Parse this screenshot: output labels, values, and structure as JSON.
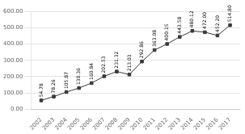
{
  "chart_data": {
    "type": "line",
    "x": [
      2002,
      2003,
      2004,
      2005,
      2006,
      2007,
      2008,
      2009,
      2010,
      2011,
      2012,
      2013,
      2014,
      2015,
      2016,
      2017
    ],
    "values": [
      54.78,
      78.26,
      105.87,
      130.36,
      160.84,
      202.53,
      231.32,
      213.03,
      292.86,
      363.08,
      400.15,
      443.58,
      480.12,
      472.0,
      452.2,
      514.8
    ],
    "value_labels": [
      "54.78",
      "78.26",
      "105.87",
      "130.36",
      "160.84",
      "202.53",
      "231.32",
      "213.03",
      "292.86",
      "363.08",
      "400.15",
      "443.58",
      "480.12",
      "472.00",
      "452.20",
      "514.80"
    ],
    "color": "#3a3a3a",
    "marker": "square",
    "xlim": [
      2001.2,
      2017.8
    ],
    "xticks": [
      2002,
      2003,
      2004,
      2005,
      2006,
      2007,
      2008,
      2009,
      2010,
      2011,
      2012,
      2013,
      2014,
      2015,
      2016,
      2017
    ],
    "ylim": [
      0,
      600
    ],
    "yticks": [
      {
        "value": 0,
        "label": "0.00"
      },
      {
        "value": 100,
        "label": "100.00"
      },
      {
        "value": 200,
        "label": "200.00"
      },
      {
        "value": 300,
        "label": "300.00"
      },
      {
        "value": 400,
        "label": "400.00"
      },
      {
        "value": 500,
        "label": "500.00"
      },
      {
        "value": 600,
        "label": "600.00"
      }
    ],
    "grid": "y",
    "data_labels": true
  }
}
